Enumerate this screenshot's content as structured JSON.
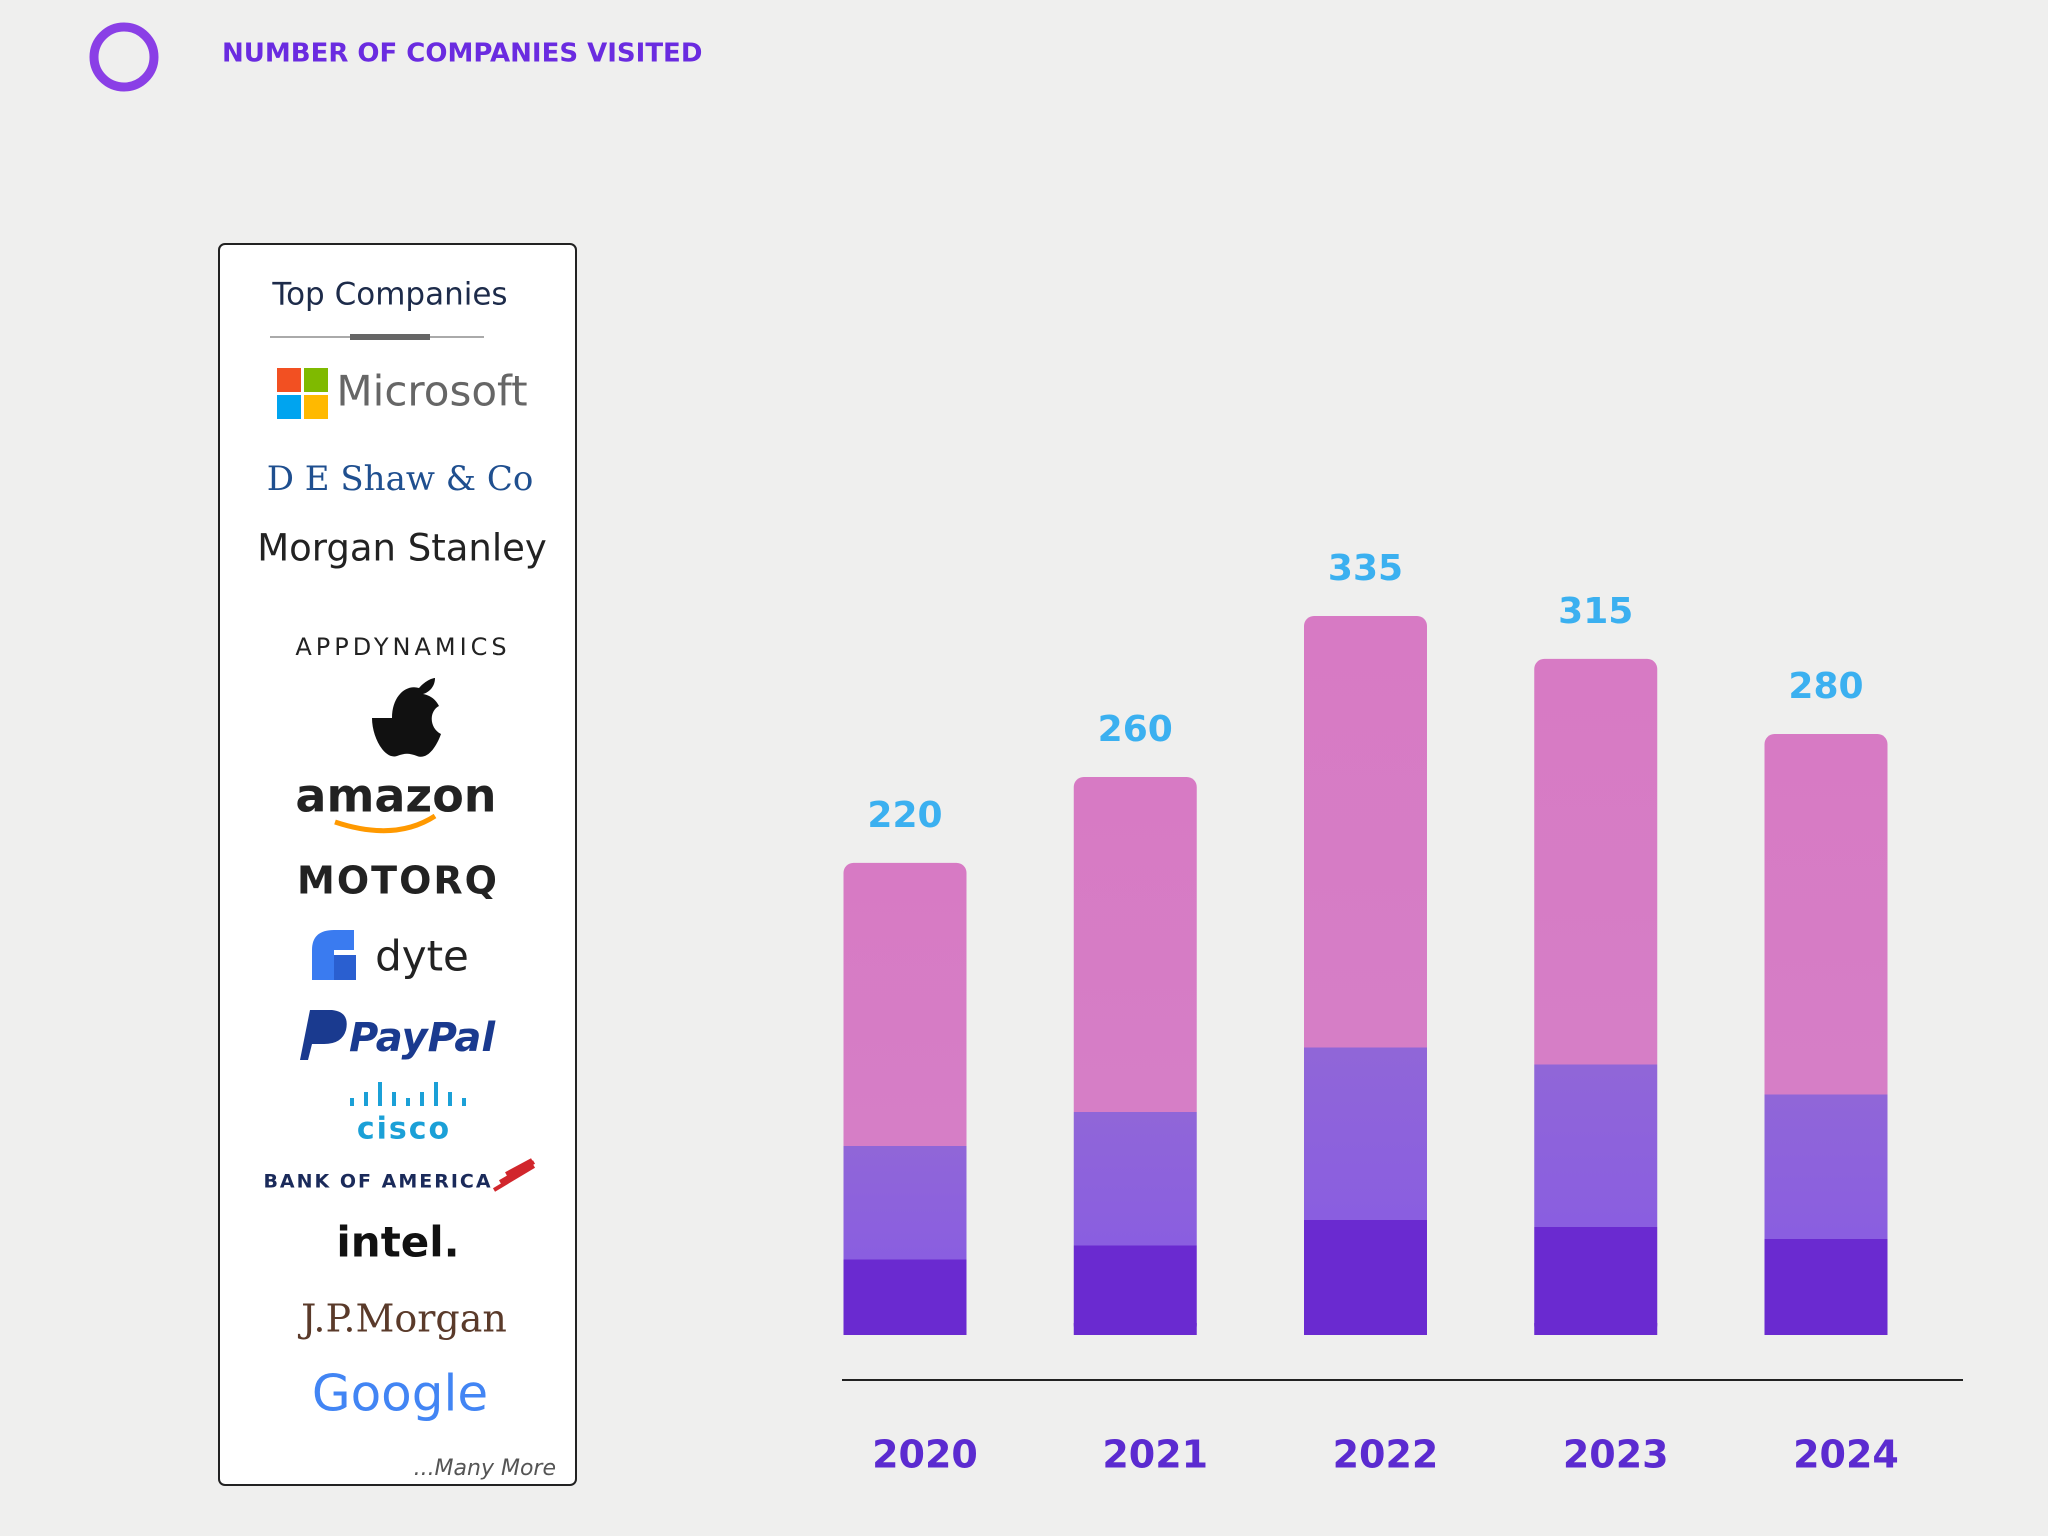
{
  "header": {
    "title": "NUMBER OF COMPANIES VISITED"
  },
  "companies": {
    "title": "Top Companies",
    "items": [
      "Microsoft",
      "D E Shaw & Co",
      "Morgan Stanley",
      "APPDYNAMICS",
      "amazon",
      "MOTORQ",
      "dyte",
      "PayPal",
      "cisco",
      "BANK OF AMERICA",
      "intel.",
      "J.P.Morgan",
      "Google"
    ],
    "footer": "...Many More"
  },
  "chart_data": {
    "type": "bar",
    "categories": [
      "2020",
      "2021",
      "2022",
      "2023",
      "2024"
    ],
    "values": [
      220,
      260,
      335,
      315,
      280
    ],
    "color": "#d77ac4",
    "value_label_color": "#3bb0f0"
  }
}
